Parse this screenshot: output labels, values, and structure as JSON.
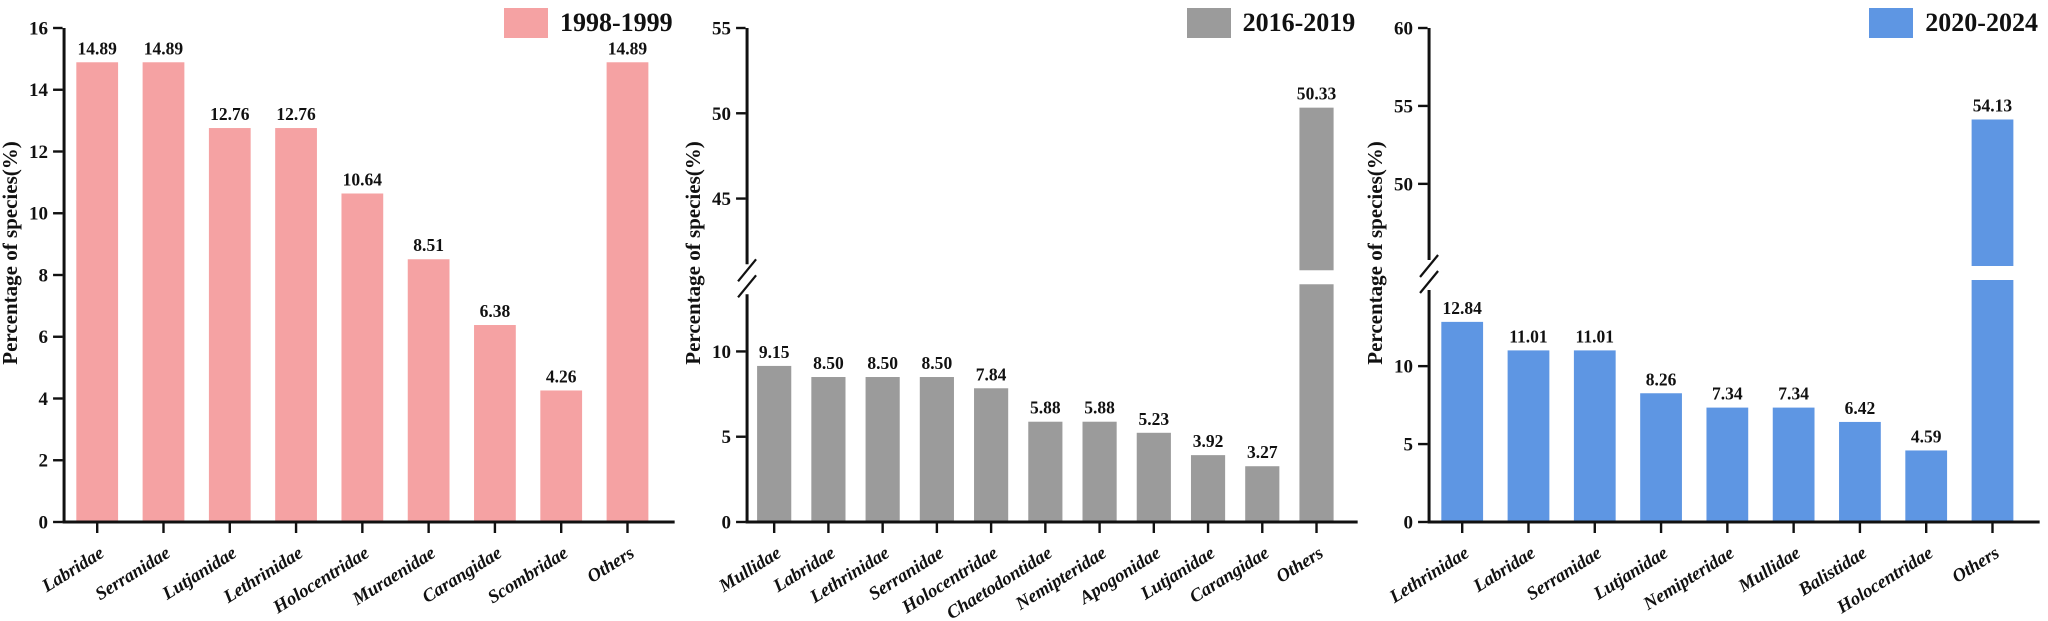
{
  "figure": {
    "background": "#ffffff",
    "ylabel_shared": "Percentage of species(%)"
  },
  "chart_data": [
    {
      "type": "bar",
      "legend": "1998-1999",
      "legend_position": "top-right",
      "bar_color": "#F5A2A3",
      "ylabel": "Percentage of species(%)",
      "categories": [
        "Labridae",
        "Serranidae",
        "Lutjanidae",
        "Lethrinidae",
        "Holocentridae",
        "Muraenidae",
        "Carangidae",
        "Scombridae",
        "Others"
      ],
      "values": [
        14.89,
        14.89,
        12.76,
        12.76,
        10.64,
        8.51,
        6.38,
        4.26,
        14.89
      ],
      "ylim": [
        0,
        16
      ],
      "yticks": [
        0,
        2,
        4,
        6,
        8,
        10,
        12,
        14,
        16
      ],
      "axis_break": null,
      "grid": false
    },
    {
      "type": "bar",
      "legend": "2016-2019",
      "legend_position": "top-right",
      "bar_color": "#9B9B9B",
      "ylabel": "Percentage of species(%)",
      "categories": [
        "Mullidae",
        "Labridae",
        "Lethrinidae",
        "Serranidae",
        "Holocentridae",
        "Chaetodontidae",
        "Nemipteridae",
        "Apogonidae",
        "Lutjanidae",
        "Carangidae",
        "Others"
      ],
      "values": [
        9.15,
        8.5,
        8.5,
        8.5,
        7.84,
        5.88,
        5.88,
        5.23,
        3.92,
        3.27,
        50.33
      ],
      "ylim": [
        0,
        55
      ],
      "yticks_lower": [
        0,
        5,
        10
      ],
      "yticks_upper": [
        45,
        50,
        55
      ],
      "axis_break": {
        "lower_max": 13,
        "upper_min": 41.5
      },
      "grid": false
    },
    {
      "type": "bar",
      "legend": "2020-2024",
      "legend_position": "top-right",
      "bar_color": "#5E96E3",
      "ylabel": "Percentage of species(%)",
      "categories": [
        "Lethrinidae",
        "Labridae",
        "Serranidae",
        "Lutjanidae",
        "Nemipteridae",
        "Mullidae",
        "Balistidae",
        "Holocentridae",
        "Others"
      ],
      "values": [
        12.84,
        11.01,
        11.01,
        8.26,
        7.34,
        7.34,
        6.42,
        4.59,
        54.13
      ],
      "ylim": [
        0,
        60
      ],
      "yticks_lower": [
        0,
        5,
        10
      ],
      "yticks_upper": [
        50,
        55,
        60
      ],
      "axis_break": {
        "lower_max": 14.5,
        "upper_min": 45.5
      },
      "grid": false
    }
  ]
}
